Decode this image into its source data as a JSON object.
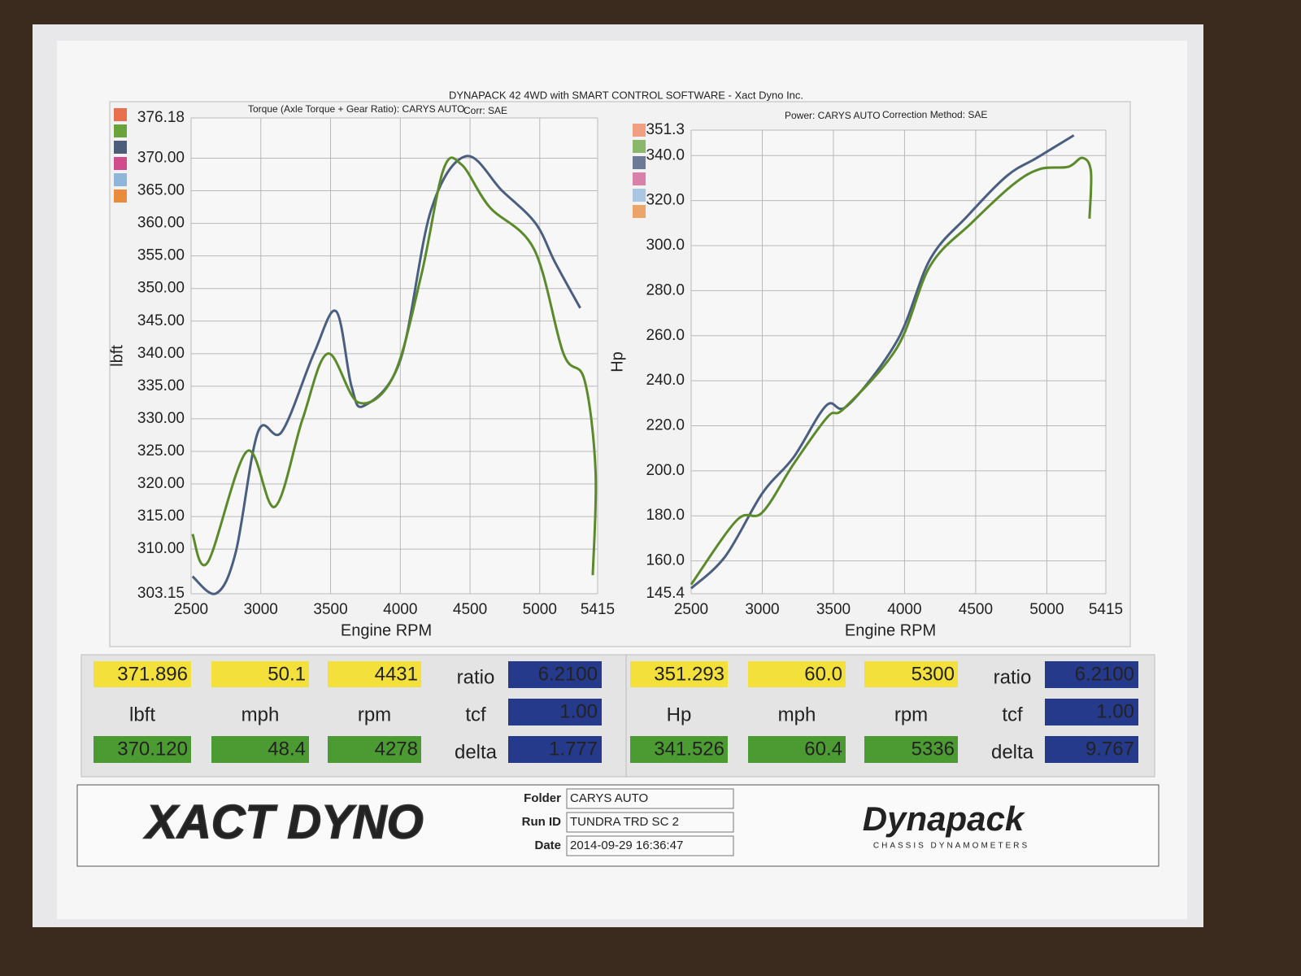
{
  "header": {
    "title": "DYNAPACK 42 4WD with SMART CONTROL SOFTWARE - Xact Dyno Inc."
  },
  "chart_data": [
    {
      "type": "line",
      "title": "Torque (Axle Torque + Gear Ratio): CARYS AUTO",
      "subtitle": "Corr: SAE",
      "x_label": "Engine RPM",
      "y_label": "lbft",
      "xlim": [
        2500,
        5415
      ],
      "xticks": [
        2500,
        3000,
        3500,
        4000,
        4500,
        5000,
        5415
      ],
      "ylim": [
        303.15,
        376.18
      ],
      "yticks": [
        303.15,
        {
          "value": 310,
          "label": "310.00"
        },
        {
          "value": 315,
          "label": "315.00"
        },
        {
          "value": 320,
          "label": "320.00"
        },
        {
          "value": 325,
          "label": "325.00"
        },
        {
          "value": 330,
          "label": "330.00"
        },
        {
          "value": 335,
          "label": "335.00"
        },
        {
          "value": 340,
          "label": "340.00"
        },
        {
          "value": 345,
          "label": "345.00"
        },
        {
          "value": 350,
          "label": "350.00"
        },
        {
          "value": 355,
          "label": "355.00"
        },
        {
          "value": 360,
          "label": "360.00"
        },
        {
          "value": 365,
          "label": "365.00"
        },
        {
          "value": 370,
          "label": "370.00"
        },
        376.18
      ],
      "grid": true,
      "series": [
        {
          "color": "#4a5f80",
          "x": [
            2510,
            2680,
            2820,
            2980,
            3150,
            3380,
            3540,
            3650,
            3740,
            4000,
            4220,
            4470,
            4730,
            4970,
            5110,
            5290
          ],
          "values": [
            305.8,
            303.2,
            309.5,
            328,
            328,
            340,
            346.5,
            335,
            332,
            339,
            362,
            370.3,
            365,
            360,
            354,
            347
          ]
        },
        {
          "color": "#5b8a2b",
          "x": [
            2510,
            2620,
            2900,
            3100,
            3300,
            3480,
            3700,
            3950,
            4150,
            4310,
            4440,
            4640,
            4960,
            5170,
            5320,
            5400,
            5380
          ],
          "values": [
            312.3,
            308,
            325,
            316.5,
            330,
            340,
            332.5,
            336.5,
            352,
            368.3,
            369,
            362.5,
            356,
            340,
            336,
            322,
            306
          ]
        }
      ]
    },
    {
      "type": "line",
      "title": "Power: CARYS AUTO",
      "subtitle": "Correction Method: SAE",
      "x_label": "Engine RPM",
      "y_label": "Hp",
      "xlim": [
        2500,
        5415
      ],
      "xticks": [
        2500,
        3000,
        3500,
        4000,
        4500,
        5000,
        5415
      ],
      "ylim": [
        145.4,
        351.3
      ],
      "yticks": [
        145.4,
        {
          "value": 160,
          "label": "160.0"
        },
        {
          "value": 180,
          "label": "180.0"
        },
        {
          "value": 200,
          "label": "200.0"
        },
        {
          "value": 220,
          "label": "220.0"
        },
        {
          "value": 240,
          "label": "240.0"
        },
        {
          "value": 260,
          "label": "260.0"
        },
        {
          "value": 280,
          "label": "280.0"
        },
        {
          "value": 300,
          "label": "300.0"
        },
        {
          "value": 320,
          "label": "320.0"
        },
        {
          "value": 340,
          "label": "340.0"
        },
        351.3
      ],
      "grid": true,
      "series": [
        {
          "color": "#4a5f80",
          "x": [
            2500,
            2740,
            3000,
            3220,
            3450,
            3600,
            3950,
            4180,
            4440,
            4720,
            4930,
            5190
          ],
          "values": [
            147.8,
            162,
            190,
            206,
            229,
            229,
            258,
            294,
            313,
            331,
            339,
            349
          ]
        },
        {
          "color": "#5b8a2b",
          "x": [
            2500,
            2820,
            3000,
            3220,
            3460,
            3580,
            3950,
            4180,
            4470,
            4760,
            4950,
            5150,
            5250,
            5310,
            5300
          ],
          "values": [
            149.5,
            178,
            181.5,
            203,
            224,
            228,
            255,
            291,
            310,
            327,
            334,
            335,
            339,
            333,
            312
          ]
        }
      ]
    }
  ],
  "readouts": [
    {
      "top": [
        "371.896",
        "50.1",
        "4431"
      ],
      "units": [
        "lbft",
        "mph",
        "rpm"
      ],
      "bottom": [
        "370.120",
        "48.4",
        "4278"
      ],
      "params": [
        {
          "label": "ratio",
          "value": "6.2100"
        },
        {
          "label": "tcf",
          "value": "1.00"
        },
        {
          "label": "delta",
          "value": "1.777"
        }
      ]
    },
    {
      "top": [
        "351.293",
        "60.0",
        "5300"
      ],
      "units": [
        "Hp",
        "mph",
        "rpm"
      ],
      "bottom": [
        "341.526",
        "60.4",
        "5336"
      ],
      "params": [
        {
          "label": "ratio",
          "value": "6.2100"
        },
        {
          "label": "tcf",
          "value": "1.00"
        },
        {
          "label": "delta",
          "value": "9.767"
        }
      ]
    }
  ],
  "footer": {
    "logo_left": "XACT DYNO",
    "fields": [
      {
        "label": "Folder",
        "value": "CARYS AUTO"
      },
      {
        "label": "Run ID",
        "value": "TUNDRA TRD SC 2"
      },
      {
        "label": "Date",
        "value": "2014-09-29 16:36:47"
      }
    ],
    "logo_right": "Dynapack",
    "logo_right_sub": "CHASSIS DYNAMOMETERS"
  }
}
